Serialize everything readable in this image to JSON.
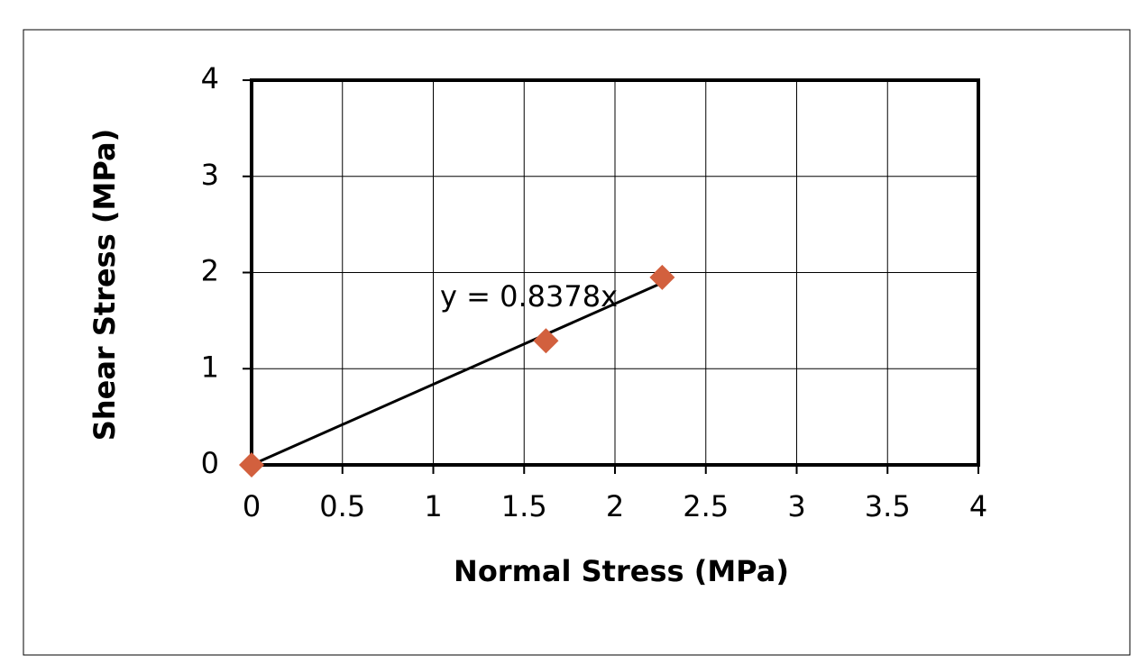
{
  "chart_data": {
    "type": "scatter",
    "x_label": "Normal Stress (MPa)",
    "y_label": "Shear Stress (MPa)",
    "x": [
      0,
      1.62,
      2.26
    ],
    "values": [
      0,
      1.29,
      1.95
    ],
    "color": "#d2603e",
    "xlim": [
      0,
      4
    ],
    "ylim": [
      0,
      4
    ],
    "xticks": [
      0,
      0.5,
      1,
      1.5,
      2,
      2.5,
      3,
      3.5,
      4
    ],
    "yticks": [
      0,
      1,
      2,
      3,
      4
    ],
    "grid": true,
    "trendline": {
      "label": "y = 0.8378x",
      "slope": 0.8378
    }
  }
}
